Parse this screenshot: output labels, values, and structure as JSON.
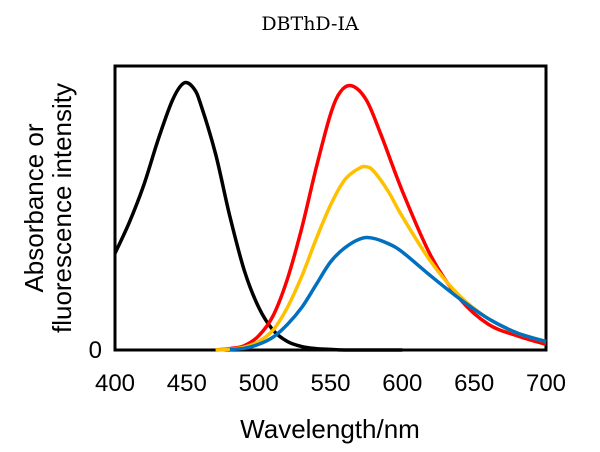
{
  "chart_data": {
    "type": "line",
    "title": "DBThD-IA",
    "xlabel": "Wavelength/nm",
    "ylabel": [
      "Absorbance or",
      "fluorescence intensity"
    ],
    "xlim": [
      400,
      700
    ],
    "ylim": [
      0,
      1.0
    ],
    "x_ticks": [
      "400",
      "450",
      "500",
      "550",
      "600",
      "650",
      "700"
    ],
    "y_ticks": [
      "0"
    ],
    "grid": false,
    "legend": "none",
    "series": [
      {
        "color": "#000000",
        "x": [
          400,
          410,
          420,
          430,
          440,
          448,
          455,
          460,
          470,
          480,
          490,
          500,
          510,
          520,
          530,
          540,
          550,
          560,
          580,
          600
        ],
        "y": [
          0.34,
          0.45,
          0.58,
          0.74,
          0.88,
          0.94,
          0.92,
          0.86,
          0.69,
          0.47,
          0.28,
          0.15,
          0.07,
          0.03,
          0.012,
          0.005,
          0.002,
          0.0,
          0.0,
          0.0
        ]
      },
      {
        "color": "#ff0000",
        "x": [
          470,
          480,
          490,
          500,
          510,
          520,
          530,
          540,
          550,
          557,
          565,
          575,
          585,
          600,
          620,
          640,
          660,
          680,
          700
        ],
        "y": [
          0.0,
          0.005,
          0.015,
          0.05,
          0.12,
          0.25,
          0.43,
          0.64,
          0.83,
          0.91,
          0.93,
          0.88,
          0.76,
          0.56,
          0.33,
          0.18,
          0.09,
          0.05,
          0.02
        ]
      },
      {
        "color": "#ffc000",
        "x": [
          470,
          480,
          490,
          500,
          510,
          520,
          530,
          540,
          550,
          560,
          570,
          575,
          580,
          590,
          600,
          620,
          640,
          660,
          680,
          700
        ],
        "y": [
          0.0,
          0.003,
          0.01,
          0.03,
          0.07,
          0.15,
          0.26,
          0.39,
          0.51,
          0.6,
          0.64,
          0.645,
          0.63,
          0.56,
          0.47,
          0.31,
          0.19,
          0.11,
          0.06,
          0.03
        ]
      },
      {
        "color": "#0070c0",
        "x": [
          480,
          490,
          500,
          510,
          520,
          530,
          540,
          550,
          560,
          570,
          578,
          590,
          600,
          620,
          640,
          660,
          680,
          700
        ],
        "y": [
          0.002,
          0.006,
          0.02,
          0.045,
          0.09,
          0.15,
          0.23,
          0.31,
          0.36,
          0.39,
          0.395,
          0.375,
          0.345,
          0.26,
          0.18,
          0.11,
          0.06,
          0.03
        ]
      }
    ]
  }
}
